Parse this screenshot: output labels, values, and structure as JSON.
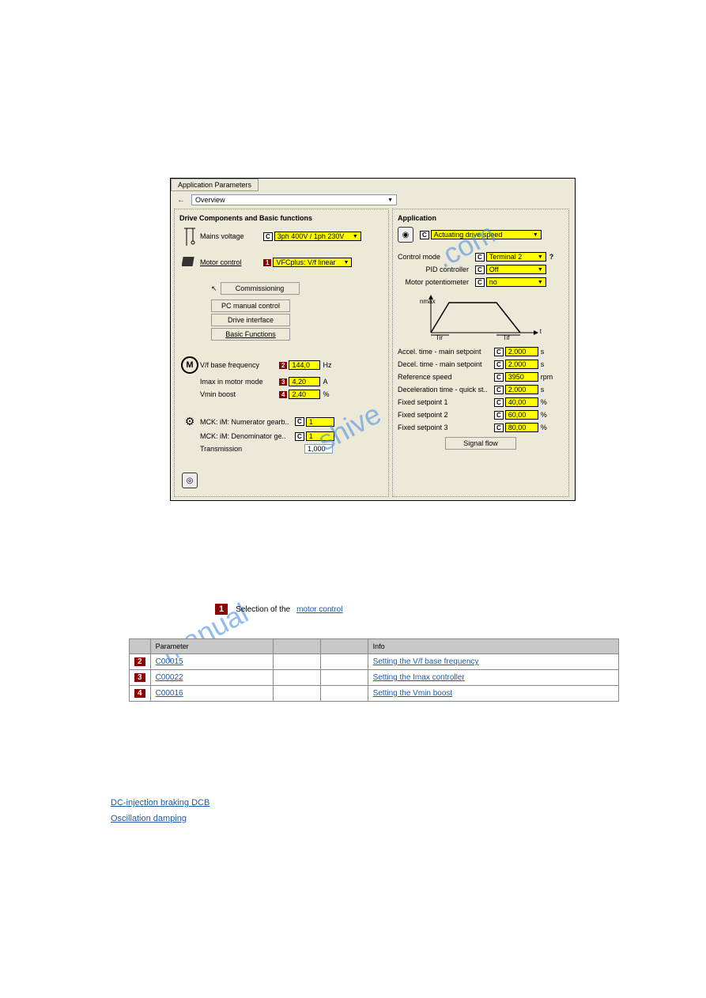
{
  "screenshot": {
    "tab": "Application Parameters",
    "nav": "Overview",
    "left_panel": {
      "title": "Drive Components and Basic functions",
      "mains_voltage": {
        "label": "Mains voltage",
        "value": "3ph 400V / 1ph 230V"
      },
      "motor_control": {
        "label": "Motor control",
        "badge": "1",
        "value": "VFCplus: V/f linear"
      },
      "buttons": [
        "Commissioning",
        "PC manual control",
        "Drive interface",
        "Basic Functions"
      ],
      "params": [
        {
          "label": "V/f base frequency",
          "badge": "2",
          "value": "144,0",
          "unit": "Hz"
        },
        {
          "label": "Imax in motor mode",
          "badge": "3",
          "value": "4,20",
          "unit": "A"
        },
        {
          "label": "Vmin boost",
          "badge": "4",
          "value": "2,40",
          "unit": "%"
        }
      ],
      "mck": [
        {
          "label": "MCK: iM: Numerator gearb..",
          "value": "1"
        },
        {
          "label": "MCK: iM: Denominator ge..",
          "value": "1"
        },
        {
          "label": "Transmission",
          "value": "1,000",
          "plain": true
        }
      ]
    },
    "right_panel": {
      "title": "Application",
      "app_value": "Actuating drive speed",
      "control_mode": {
        "label": "Control mode",
        "value": "Terminal 2"
      },
      "pid": {
        "label": "PID controller",
        "value": "Off"
      },
      "motor_pot": {
        "label": "Motor potentiometer",
        "value": "no"
      },
      "graph": {
        "nmax": "nmax",
        "tir": "Tir",
        "tif": "Tif",
        "t": "t"
      },
      "timing": [
        {
          "label": "Accel. time - main setpoint",
          "value": "2,000",
          "unit": "s"
        },
        {
          "label": "Decel. time - main setpoint",
          "value": "2,000",
          "unit": "s"
        },
        {
          "label": "Reference speed",
          "value": "3950",
          "unit": "rpm"
        },
        {
          "label": "Deceleration time - quick st..",
          "value": "2,000",
          "unit": "s"
        },
        {
          "label": "Fixed setpoint 1",
          "value": "40,00",
          "unit": "%"
        },
        {
          "label": "Fixed setpoint 2",
          "value": "60,00",
          "unit": "%"
        },
        {
          "label": "Fixed setpoint 3",
          "value": "80,00",
          "unit": "%"
        }
      ],
      "signal_flow": "Signal flow"
    }
  },
  "caption": {
    "badge": "1",
    "text": "Selection of the",
    "link": "motor control"
  },
  "table": {
    "headers": [
      "",
      "Parameter",
      "",
      "",
      "Info"
    ],
    "rows": [
      {
        "badge": "2",
        "param": "C00015",
        "v1": " ",
        "v2": " ",
        "info": "Setting the V/f base frequency"
      },
      {
        "badge": "3",
        "param": "C00022",
        "v1": " ",
        "v2": " ",
        "info": "Setting the Imax controller"
      },
      {
        "badge": "4",
        "param": "C00016",
        "v1": " ",
        "v2": " ",
        "info": "Setting the Vmin boost"
      }
    ]
  },
  "footer": {
    "link1": "DC-injection braking DCB",
    "link2": "Oscillation damping"
  },
  "colors": {
    "yellow": "#ffff00",
    "darkred": "#8b0000",
    "panel_bg": "#ece9d8",
    "link": "#1e5aa8",
    "watermark": "#4a90e2"
  }
}
